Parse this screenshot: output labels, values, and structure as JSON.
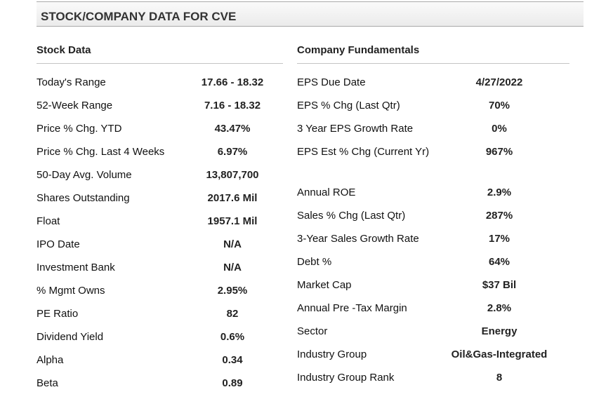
{
  "header": {
    "title": "STOCK/COMPANY DATA FOR CVE"
  },
  "stock_data": {
    "heading": "Stock Data",
    "rows": [
      {
        "label": "Today's Range",
        "value": "17.66  -  18.32"
      },
      {
        "label": "52-Week Range",
        "value": "7.16  -  18.32"
      },
      {
        "label": "Price % Chg. YTD",
        "value": "43.47%"
      },
      {
        "label": "Price % Chg. Last 4 Weeks",
        "value": "6.97%"
      },
      {
        "label": "50-Day Avg. Volume",
        "value": "13,807,700"
      },
      {
        "label": "Shares Outstanding",
        "value": "2017.6 Mil"
      },
      {
        "label": "Float",
        "value": "1957.1 Mil"
      },
      {
        "label": "IPO Date",
        "value": "N/A"
      },
      {
        "label": "Investment Bank",
        "value": "N/A"
      },
      {
        "label": "% Mgmt Owns",
        "value": "2.95%"
      },
      {
        "label": "PE Ratio",
        "value": "82"
      },
      {
        "label": "Dividend Yield",
        "value": "0.6%"
      },
      {
        "label": "Alpha",
        "value": "0.34"
      },
      {
        "label": "Beta",
        "value": "0.89"
      }
    ]
  },
  "company_fundamentals": {
    "heading": "Company Fundamentals",
    "rows": [
      {
        "label": "EPS Due Date",
        "value": "4/27/2022"
      },
      {
        "label": "EPS % Chg (Last Qtr)",
        "value": "70%"
      },
      {
        "label": "3 Year EPS Growth Rate",
        "value": "0%"
      },
      {
        "label": "EPS Est % Chg (Current Yr)",
        "value": "967%"
      },
      {
        "label": "Annual ROE",
        "value": "2.9%"
      },
      {
        "label": "Sales % Chg (Last Qtr)",
        "value": "287%"
      },
      {
        "label": "3-Year Sales Growth Rate",
        "value": "17%"
      },
      {
        "label": "Debt %",
        "value": "64%"
      },
      {
        "label": "Market Cap",
        "value": "$37 Bil"
      },
      {
        "label": "Annual Pre -Tax Margin",
        "value": "2.8%"
      },
      {
        "label": "Sector",
        "value": "Energy"
      },
      {
        "label": "Industry Group",
        "value": "Oil&Gas-Integrated"
      },
      {
        "label": "Industry Group Rank",
        "value": "8"
      }
    ]
  }
}
